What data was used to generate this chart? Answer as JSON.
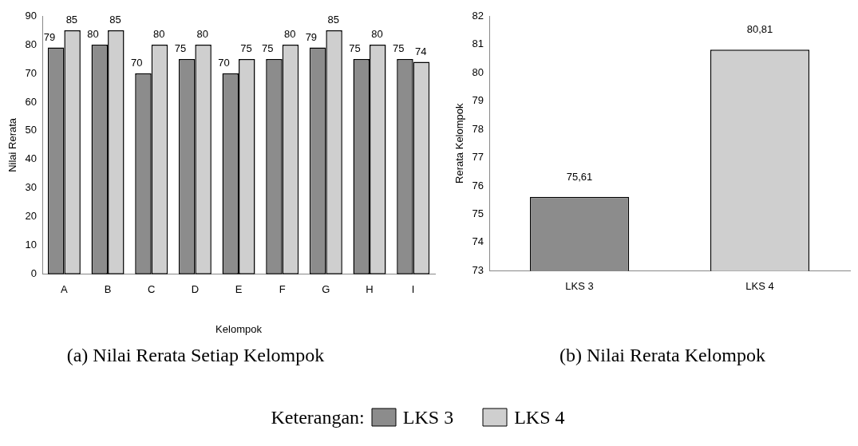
{
  "chart_data": [
    {
      "type": "bar",
      "title": "(a) Nilai Rerata Setiap Kelompok",
      "xlabel": "Kelompok",
      "ylabel": "Nilai Rerata",
      "categories": [
        "A",
        "B",
        "C",
        "D",
        "E",
        "F",
        "G",
        "H",
        "I"
      ],
      "series": [
        {
          "name": "LKS 3",
          "color": "#8c8c8c",
          "values": [
            79,
            80,
            70,
            75,
            70,
            75,
            79,
            75,
            75
          ]
        },
        {
          "name": "LKS 4",
          "color": "#cfcfcf",
          "values": [
            85,
            85,
            80,
            80,
            75,
            80,
            85,
            80,
            74
          ]
        }
      ],
      "ylim": [
        0,
        90
      ],
      "yticks": [
        0,
        10,
        20,
        30,
        40,
        50,
        60,
        70,
        80,
        90
      ],
      "grid": false,
      "data_labels": true,
      "legend": "bottom",
      "legend_title": "Keterangan:"
    },
    {
      "type": "bar",
      "title": "(b) Nilai Rerata Kelompok",
      "ylabel": "Rerata Kelompok",
      "categories": [
        "LKS 3",
        "LKS 4"
      ],
      "values": [
        75.61,
        80.81
      ],
      "colors": [
        "#8c8c8c",
        "#cfcfcf"
      ],
      "value_labels": [
        "75,61",
        "80,81"
      ],
      "ylim": [
        73,
        82
      ],
      "yticks": [
        73,
        74,
        75,
        76,
        77,
        78,
        79,
        80,
        81,
        82
      ],
      "grid": false
    }
  ]
}
